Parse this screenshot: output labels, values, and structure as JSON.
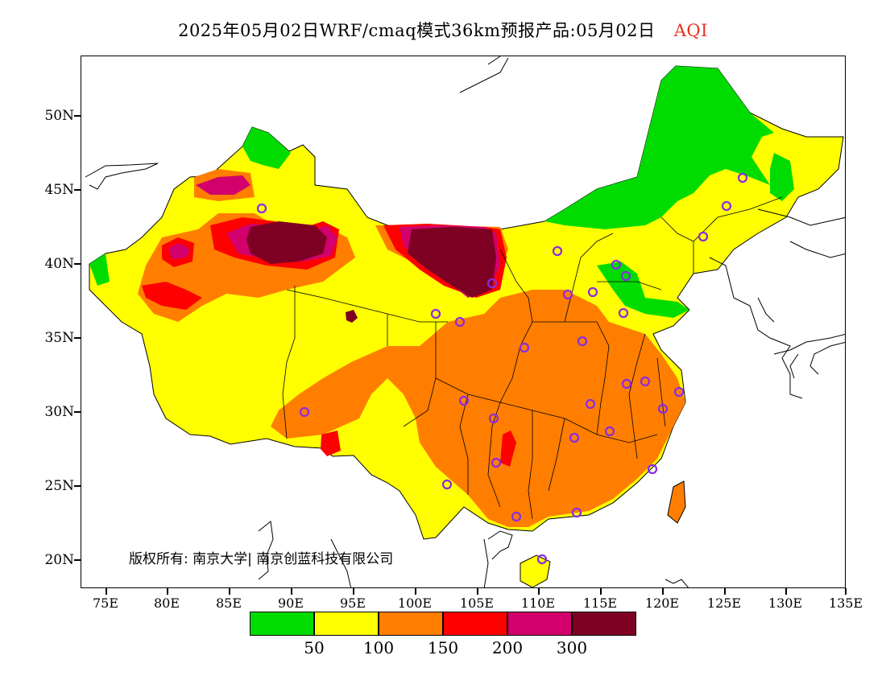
{
  "title": {
    "main": "2025年05月02日WRF/cmaq模式36km预报产品:05月02日",
    "variable": "AQI"
  },
  "axes": {
    "lat_labels": [
      "50N",
      "45N",
      "40N",
      "35N",
      "30N",
      "25N",
      "20N"
    ],
    "lon_labels": [
      "75E",
      "80E",
      "85E",
      "90E",
      "95E",
      "100E",
      "105E",
      "110E",
      "115E",
      "120E",
      "125E",
      "130E",
      "135E"
    ]
  },
  "copyright": "版权所有: 南京大学| 南京创蓝科技有限公司",
  "legend": {
    "colors": [
      "#00dc00",
      "#ffff00",
      "#ff7e00",
      "#ff0000",
      "#d2006c",
      "#7e0023"
    ],
    "labels": [
      "50",
      "100",
      "150",
      "200",
      "300"
    ]
  },
  "colors": {
    "good": "#00dc00",
    "moderate": "#ffff00",
    "sensitive": "#ff7e00",
    "unhealthy": "#ff0000",
    "very_unhealthy": "#d2006c",
    "hazardous": "#7e0023",
    "station_marker": "#8a2be2"
  }
}
